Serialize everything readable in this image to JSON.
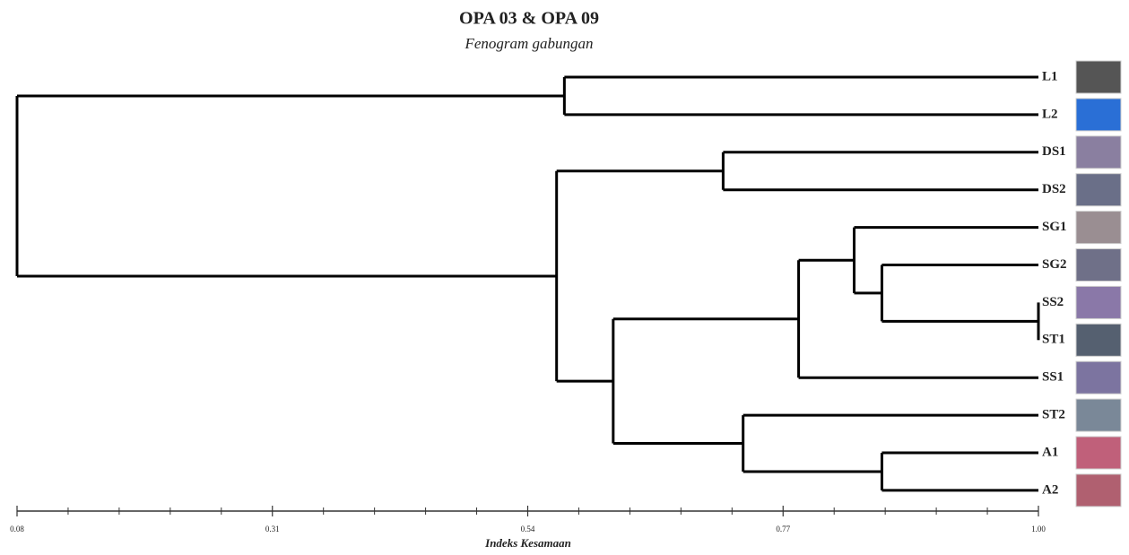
{
  "chart_data": {
    "type": "dendrogram",
    "title": "OPA 03 & OPA 09",
    "subtitle": "Fenogram gabungan",
    "x_label": "Indeks Kesamaan",
    "leaves": [
      "L1",
      "L2",
      "DS1",
      "DS2",
      "SG1",
      "SG2",
      "SS2",
      "ST1",
      "SS1",
      "ST2",
      "A1",
      "A2"
    ],
    "merges": [
      {
        "children": [
          6,
          7
        ],
        "height": 1.0
      },
      {
        "children": [
          5,
          12
        ],
        "height": 0.859
      },
      {
        "children": [
          4,
          13
        ],
        "height": 0.834
      },
      {
        "children": [
          14,
          8
        ],
        "height": 0.784
      },
      {
        "children": [
          10,
          11
        ],
        "height": 0.859
      },
      {
        "children": [
          9,
          16
        ],
        "height": 0.734
      },
      {
        "children": [
          15,
          17
        ],
        "height": 0.617
      },
      {
        "children": [
          2,
          3
        ],
        "height": 0.716
      },
      {
        "children": [
          19,
          18
        ],
        "height": 0.566
      },
      {
        "children": [
          0,
          1
        ],
        "height": 0.573
      },
      {
        "children": [
          21,
          20
        ],
        "height": 0.08
      }
    ],
    "xlim": [
      0.08,
      1.0
    ],
    "xticks": [
      0.08,
      0.31,
      0.54,
      0.77,
      {
        "value": 1.0,
        "label": "1.00"
      }
    ],
    "color": "#000000"
  }
}
